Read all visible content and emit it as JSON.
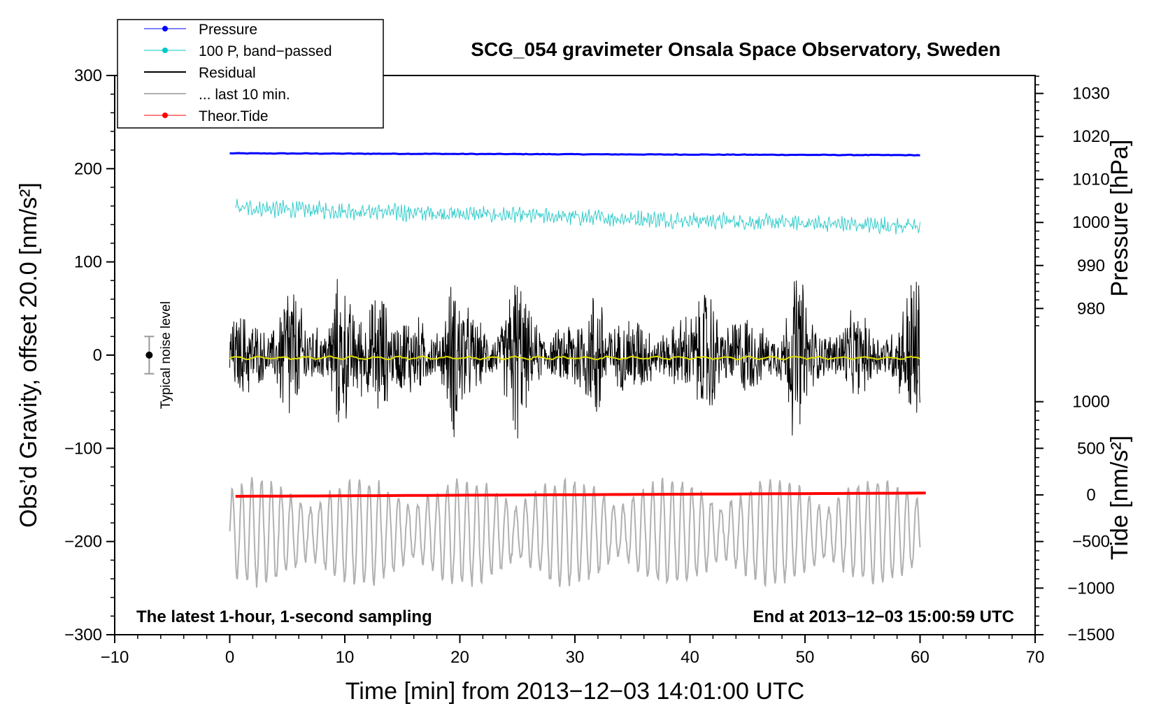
{
  "chart_data": {
    "type": "line",
    "title": "SCG_054 gravimeter Onsala Space Observatory, Sweden",
    "xlabel": "Time [min] from 2013−12−03 14:01:00 UTC",
    "ylabel_left": "Obs’d Gravity, offset 20.0 [nm/s²]",
    "ylabel_right_top": "Pressure [hPa]",
    "ylabel_right_bottom": "Tide [nm/s²]",
    "xlim": [
      -10,
      70
    ],
    "ylim_left": [
      -300,
      300
    ],
    "xticks": [
      "−10",
      "0",
      "10",
      "20",
      "30",
      "40",
      "50",
      "60",
      "70"
    ],
    "xtick_values": [
      -10,
      0,
      10,
      20,
      30,
      40,
      50,
      60,
      70
    ],
    "yticks_left": [
      "300",
      "200",
      "100",
      "0",
      "−100",
      "−200",
      "−300"
    ],
    "ytick_left_values": [
      300,
      200,
      100,
      0,
      -100,
      -200,
      -300
    ],
    "yticks_pressure": [
      "1030",
      "1020",
      "1010",
      "1000",
      "990",
      "980"
    ],
    "ytick_pressure_values": [
      1030,
      1020,
      1010,
      1000,
      990,
      980
    ],
    "pressure_scale": {
      "hPa_at_left_200": 1012.5,
      "hPa_per_left_100": 21.67
    },
    "yticks_tide": [
      "1000",
      "500",
      "0",
      "−500",
      "−1000",
      "−1500"
    ],
    "ytick_tide_values": [
      1000,
      500,
      0,
      -500,
      -1000,
      -1500
    ],
    "tide_scale": {
      "tide_0_at_left": -150,
      "tide_per_left_unit": 10
    },
    "annotation_left": "The latest 1-hour, 1-second sampling",
    "annotation_right": "End at 2013−12−03 15:00:59 UTC",
    "noise_label": "Typical noise level",
    "noise_bar": {
      "x": -7,
      "center": 0,
      "range": [
        -20,
        20
      ]
    },
    "legend": [
      {
        "name": "Pressure",
        "color": "#0000ff",
        "marker": true
      },
      {
        "name": "100 P, band−passed",
        "color": "#00c8c8",
        "marker": true
      },
      {
        "name": "Residual",
        "color": "#000000",
        "marker": false
      },
      {
        "name": "... last 10 min.",
        "color": "#b0b0b0",
        "marker": false
      },
      {
        "name": "Theor.Tide",
        "color": "#ff0000",
        "marker": true
      }
    ],
    "series": [
      {
        "name": "Pressure",
        "color": "#0000ff",
        "x_range": [
          0,
          60
        ],
        "start": 216.5,
        "end": 214.5,
        "width": 3
      },
      {
        "name": "100 P, band−passed",
        "color": "#33cccc",
        "x_range": [
          0.5,
          60
        ],
        "start": 158,
        "end": 138,
        "amplitude": 8,
        "width": 1
      },
      {
        "name": "Residual",
        "color": "#000000",
        "x_range": [
          0,
          60
        ],
        "center": 0,
        "peak": 110,
        "bursts_min": [
          5,
          9.5,
          13,
          19.5,
          24.8,
          32,
          41.6,
          49.3,
          59.5
        ],
        "width": 1
      },
      {
        "name": "Residual smoothed",
        "color": "#e0e000",
        "x_range": [
          0,
          60
        ],
        "center": -3,
        "width": 2
      },
      {
        "name": "... last 10 min.",
        "color": "#b0b0b0",
        "x_range": [
          0,
          60
        ],
        "center": -190,
        "amplitude": 55,
        "width": 2
      },
      {
        "name": "Theor.Tide",
        "color": "#ff0000",
        "x_range": [
          0.5,
          60.5
        ],
        "start": -151.5,
        "end": -148,
        "width": 4
      }
    ]
  }
}
